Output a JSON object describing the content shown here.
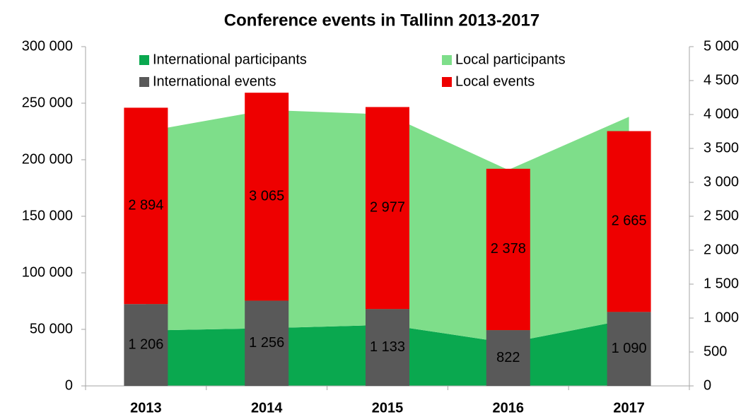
{
  "chart_data": {
    "type": "combo",
    "title": "Conference events in Tallinn 2013-2017",
    "categories": [
      "2013",
      "2014",
      "2015",
      "2016",
      "2017"
    ],
    "series": [
      {
        "name": "International participants",
        "type": "area",
        "axis": "y",
        "color": "#0aa84f",
        "values": [
          49000,
          51000,
          54000,
          38000,
          59000
        ]
      },
      {
        "name": "Local participants",
        "type": "area",
        "axis": "y",
        "color": "#7ede8a",
        "values": [
          176000,
          193000,
          186000,
          153000,
          179000
        ]
      },
      {
        "name": "International events",
        "type": "bar",
        "axis": "y2",
        "color": "#595959",
        "values": [
          1206,
          1256,
          1133,
          822,
          1090
        ],
        "value_labels": [
          "1 206",
          "1 256",
          "1 133",
          "822",
          "1 090"
        ]
      },
      {
        "name": "Local events",
        "type": "bar",
        "axis": "y2",
        "color": "#ee0000",
        "values": [
          2894,
          3065,
          2977,
          2378,
          2665
        ],
        "value_labels": [
          "2 894",
          "3 065",
          "2 977",
          "2 378",
          "2 665"
        ]
      }
    ],
    "ylim": [
      0,
      300000
    ],
    "yticks": [
      0,
      {
        "value": 50000,
        "label": "50 000"
      },
      {
        "value": 100000,
        "label": "100 000"
      },
      {
        "value": 150000,
        "label": "150 000"
      },
      {
        "value": 200000,
        "label": "200 000"
      },
      {
        "value": 250000,
        "label": "250 000"
      },
      {
        "value": 300000,
        "label": "300 000"
      }
    ],
    "y2lim": [
      0,
      5000
    ],
    "y2ticks": [
      0,
      500,
      {
        "value": 1000,
        "label": "1 000"
      },
      {
        "value": 1500,
        "label": "1 500"
      },
      {
        "value": 2000,
        "label": "2 000"
      },
      {
        "value": 2500,
        "label": "2 500"
      },
      {
        "value": 3000,
        "label": "3 000"
      },
      {
        "value": 3500,
        "label": "3 500"
      },
      {
        "value": 4000,
        "label": "4 000"
      },
      {
        "value": 4500,
        "label": "4 500"
      },
      {
        "value": 5000,
        "label": "5 000"
      }
    ],
    "legend": "top"
  }
}
